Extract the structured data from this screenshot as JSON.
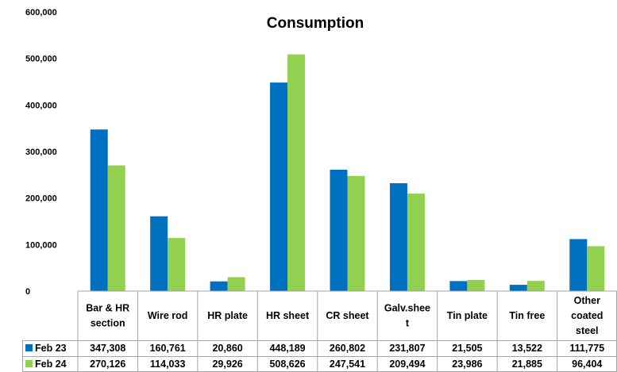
{
  "chart_data": {
    "type": "bar",
    "title": "Consumption",
    "categories": [
      [
        "Bar & HR",
        "section"
      ],
      [
        "Wire rod"
      ],
      [
        "HR plate"
      ],
      [
        "HR sheet"
      ],
      [
        "CR sheet"
      ],
      [
        "Galv.shee",
        "t"
      ],
      [
        "Tin plate"
      ],
      [
        "Tin free"
      ],
      [
        "Other",
        "coated",
        "steel"
      ]
    ],
    "series": [
      {
        "name": "Feb 23",
        "color": "#0070C0",
        "values": [
          347308,
          160761,
          20860,
          448189,
          260802,
          231807,
          21505,
          13522,
          111775
        ],
        "labels": [
          "347,308",
          "160,761",
          "20,860",
          "448,189",
          "260,802",
          "231,807",
          "21,505",
          "13,522",
          "111,775"
        ]
      },
      {
        "name": "Feb 24",
        "color": "#92D050",
        "values": [
          270126,
          114033,
          29926,
          508626,
          247541,
          209494,
          23986,
          21885,
          96404
        ],
        "labels": [
          "270,126",
          "114,033",
          "29,926",
          "508,626",
          "247,541",
          "209,494",
          "23,986",
          "21,885",
          "96,404"
        ]
      }
    ],
    "ylim": [
      0,
      600000
    ],
    "yticks": [
      "0",
      "100,000",
      "200,000",
      "300,000",
      "400,000",
      "500,000",
      "600,000"
    ],
    "grid": false,
    "legend": "data-table-left"
  }
}
